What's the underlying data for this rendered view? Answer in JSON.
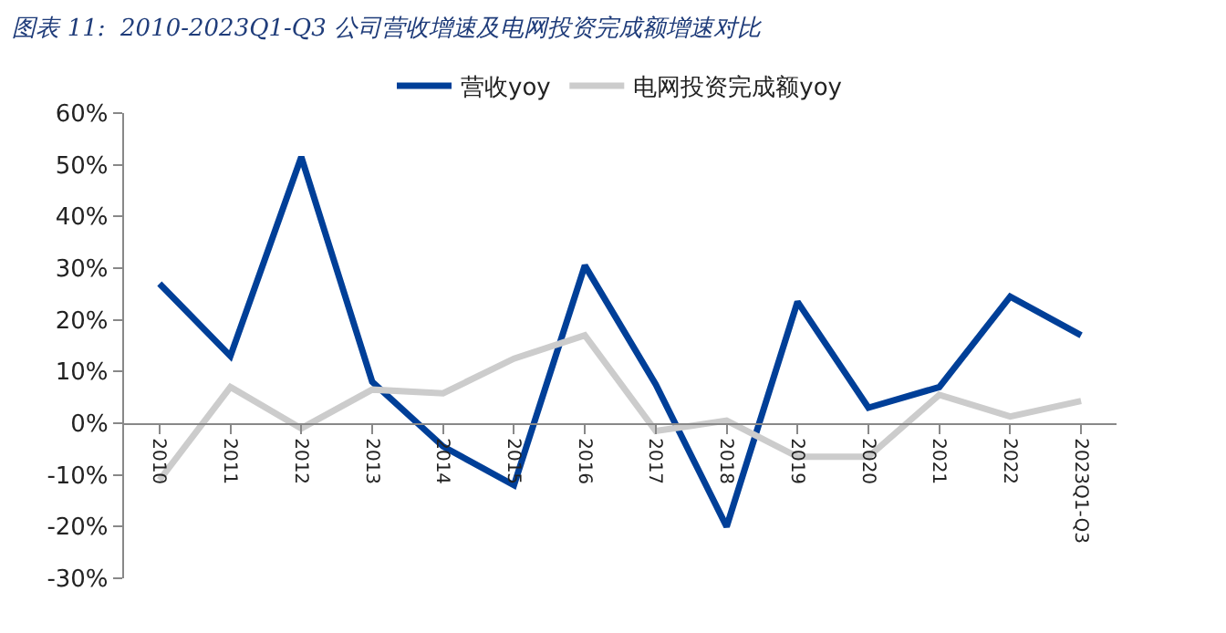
{
  "chart_data": {
    "type": "line",
    "title": "图表 11:  2010-2023Q1-Q3 公司营收增速及电网投资完成额增速对比",
    "categories": [
      "2010",
      "2011",
      "2012",
      "2013",
      "2014",
      "2015",
      "2016",
      "2017",
      "2018",
      "2019",
      "2020",
      "2021",
      "2022",
      "2023Q1-Q3"
    ],
    "series": [
      {
        "name": "营收yoy",
        "color": "#003f98",
        "values": [
          27,
          13,
          51.5,
          8,
          -4.5,
          -12,
          30.5,
          7.5,
          -20,
          23.5,
          3,
          7,
          24.5,
          17
        ]
      },
      {
        "name": "电网投资完成额yoy",
        "color": "#cccccc",
        "values": [
          -11,
          7,
          -1,
          6.5,
          5.8,
          12.5,
          17,
          -1.5,
          0.5,
          -6.5,
          -6.5,
          5.5,
          1.3,
          4.3
        ]
      }
    ],
    "ylim": [
      -30,
      60
    ],
    "yticks": [
      {
        "value": -30,
        "label": "-30%"
      },
      {
        "value": -20,
        "label": "-20%"
      },
      {
        "value": -10,
        "label": "-10%"
      },
      {
        "value": 0,
        "label": "0%"
      },
      {
        "value": 10,
        "label": "10%"
      },
      {
        "value": 20,
        "label": "20%"
      },
      {
        "value": 30,
        "label": "30%"
      },
      {
        "value": 40,
        "label": "40%"
      },
      {
        "value": 50,
        "label": "50%"
      },
      {
        "value": 60,
        "label": "60%"
      }
    ],
    "legend": "top",
    "marker": "none",
    "line_style": "solid"
  }
}
